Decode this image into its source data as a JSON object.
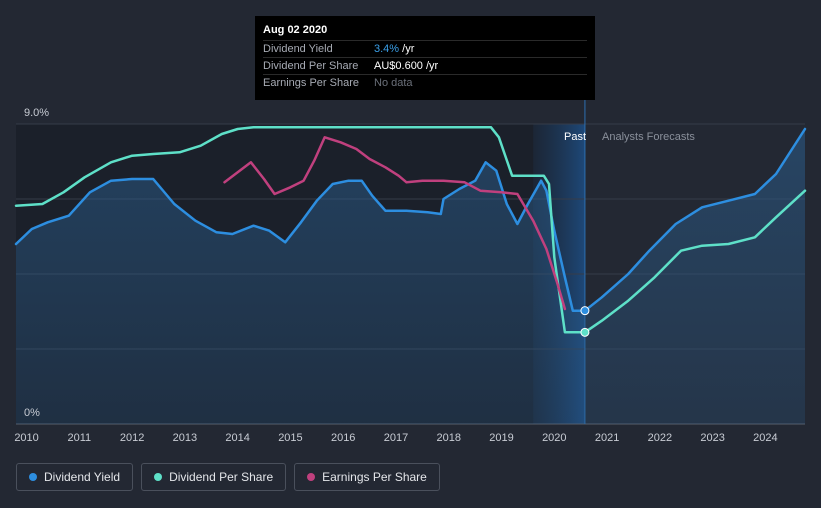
{
  "tooltip": {
    "date": "Aug 02 2020",
    "rows": [
      {
        "label": "Dividend Yield",
        "value": "3.4%",
        "unit": "/yr"
      },
      {
        "label": "Dividend Per Share",
        "value": "AU$0.600",
        "unit": "/yr"
      },
      {
        "label": "Earnings Per Share",
        "value": "No data"
      }
    ]
  },
  "regions": {
    "past": "Past",
    "forecast": "Analysts Forecasts"
  },
  "legend": [
    {
      "label": "Dividend Yield",
      "color": "#2d8ee0"
    },
    {
      "label": "Dividend Per Share",
      "color": "#5ee0c8"
    },
    {
      "label": "Earnings Per Share",
      "color": "#c0407e"
    }
  ],
  "chart_data": {
    "type": "line",
    "ylabel_top": "9.0%",
    "ylabel_bottom": "0%",
    "ylim": [
      0,
      9.0
    ],
    "xlim": [
      2009.8,
      2024.75
    ],
    "x_ticks": [
      "2010",
      "2011",
      "2012",
      "2013",
      "2014",
      "2015",
      "2016",
      "2017",
      "2018",
      "2019",
      "2020",
      "2021",
      "2022",
      "2023",
      "2024"
    ],
    "past_end": 2020.58,
    "forecast_band_start": 2019.6,
    "grid": true,
    "series": [
      {
        "name": "Dividend Yield",
        "color": "#2d8ee0",
        "area": true,
        "points": [
          [
            2009.8,
            5.4
          ],
          [
            2010.1,
            5.85
          ],
          [
            2010.4,
            6.05
          ],
          [
            2010.8,
            6.25
          ],
          [
            2011.2,
            6.95
          ],
          [
            2011.6,
            7.3
          ],
          [
            2012.0,
            7.35
          ],
          [
            2012.4,
            7.35
          ],
          [
            2012.8,
            6.6
          ],
          [
            2013.2,
            6.1
          ],
          [
            2013.6,
            5.75
          ],
          [
            2013.9,
            5.7
          ],
          [
            2014.3,
            5.95
          ],
          [
            2014.6,
            5.8
          ],
          [
            2014.9,
            5.45
          ],
          [
            2015.2,
            6.05
          ],
          [
            2015.5,
            6.7
          ],
          [
            2015.8,
            7.2
          ],
          [
            2016.1,
            7.3
          ],
          [
            2016.35,
            7.3
          ],
          [
            2016.55,
            6.85
          ],
          [
            2016.8,
            6.4
          ],
          [
            2017.2,
            6.4
          ],
          [
            2017.6,
            6.35
          ],
          [
            2017.85,
            6.3
          ],
          [
            2017.9,
            6.75
          ],
          [
            2018.2,
            7.05
          ],
          [
            2018.5,
            7.3
          ],
          [
            2018.7,
            7.85
          ],
          [
            2018.9,
            7.6
          ],
          [
            2019.1,
            6.6
          ],
          [
            2019.3,
            6.0
          ],
          [
            2019.5,
            6.6
          ],
          [
            2019.75,
            7.3
          ],
          [
            2019.85,
            7.0
          ],
          [
            2020.0,
            5.8
          ],
          [
            2020.2,
            4.4
          ],
          [
            2020.35,
            3.4
          ],
          [
            2020.58,
            3.4
          ],
          [
            2020.9,
            3.8
          ],
          [
            2021.4,
            4.5
          ],
          [
            2021.8,
            5.2
          ],
          [
            2022.3,
            6.0
          ],
          [
            2022.8,
            6.5
          ],
          [
            2023.3,
            6.7
          ],
          [
            2023.8,
            6.9
          ],
          [
            2024.2,
            7.5
          ],
          [
            2024.75,
            8.85
          ]
        ]
      },
      {
        "name": "Dividend Per Share",
        "color": "#5ee0c8",
        "area": false,
        "points": [
          [
            2009.8,
            6.55
          ],
          [
            2010.3,
            6.6
          ],
          [
            2010.7,
            6.95
          ],
          [
            2011.1,
            7.4
          ],
          [
            2011.6,
            7.85
          ],
          [
            2012.0,
            8.05
          ],
          [
            2012.4,
            8.1
          ],
          [
            2012.9,
            8.15
          ],
          [
            2013.3,
            8.35
          ],
          [
            2013.7,
            8.7
          ],
          [
            2014.0,
            8.85
          ],
          [
            2014.3,
            8.9
          ],
          [
            2016.0,
            8.9
          ],
          [
            2017.9,
            8.9
          ],
          [
            2018.8,
            8.9
          ],
          [
            2018.95,
            8.6
          ],
          [
            2019.2,
            7.45
          ],
          [
            2019.8,
            7.45
          ],
          [
            2019.9,
            7.2
          ],
          [
            2020.0,
            5.0
          ],
          [
            2020.2,
            2.75
          ],
          [
            2020.58,
            2.75
          ],
          [
            2020.9,
            3.1
          ],
          [
            2021.4,
            3.7
          ],
          [
            2021.9,
            4.4
          ],
          [
            2022.4,
            5.2
          ],
          [
            2022.8,
            5.35
          ],
          [
            2023.3,
            5.4
          ],
          [
            2023.8,
            5.6
          ],
          [
            2024.2,
            6.2
          ],
          [
            2024.75,
            7.0
          ]
        ]
      },
      {
        "name": "Earnings Per Share",
        "color": "#c0407e",
        "area": false,
        "points": [
          [
            2013.75,
            7.25
          ],
          [
            2014.0,
            7.55
          ],
          [
            2014.25,
            7.85
          ],
          [
            2014.5,
            7.35
          ],
          [
            2014.7,
            6.9
          ],
          [
            2015.0,
            7.1
          ],
          [
            2015.25,
            7.3
          ],
          [
            2015.45,
            7.9
          ],
          [
            2015.65,
            8.6
          ],
          [
            2015.95,
            8.45
          ],
          [
            2016.25,
            8.25
          ],
          [
            2016.5,
            7.95
          ],
          [
            2016.8,
            7.7
          ],
          [
            2017.05,
            7.45
          ],
          [
            2017.2,
            7.25
          ],
          [
            2017.5,
            7.3
          ],
          [
            2017.9,
            7.3
          ],
          [
            2018.3,
            7.25
          ],
          [
            2018.6,
            7.0
          ],
          [
            2019.0,
            6.95
          ],
          [
            2019.3,
            6.9
          ],
          [
            2019.6,
            6.1
          ],
          [
            2019.85,
            5.25
          ],
          [
            2020.05,
            4.25
          ],
          [
            2020.2,
            3.45
          ]
        ]
      }
    ],
    "markers": [
      {
        "series": "Dividend Yield",
        "x": 2020.58,
        "y": 3.4
      },
      {
        "series": "Dividend Per Share",
        "x": 2020.58,
        "y": 2.75
      }
    ]
  }
}
